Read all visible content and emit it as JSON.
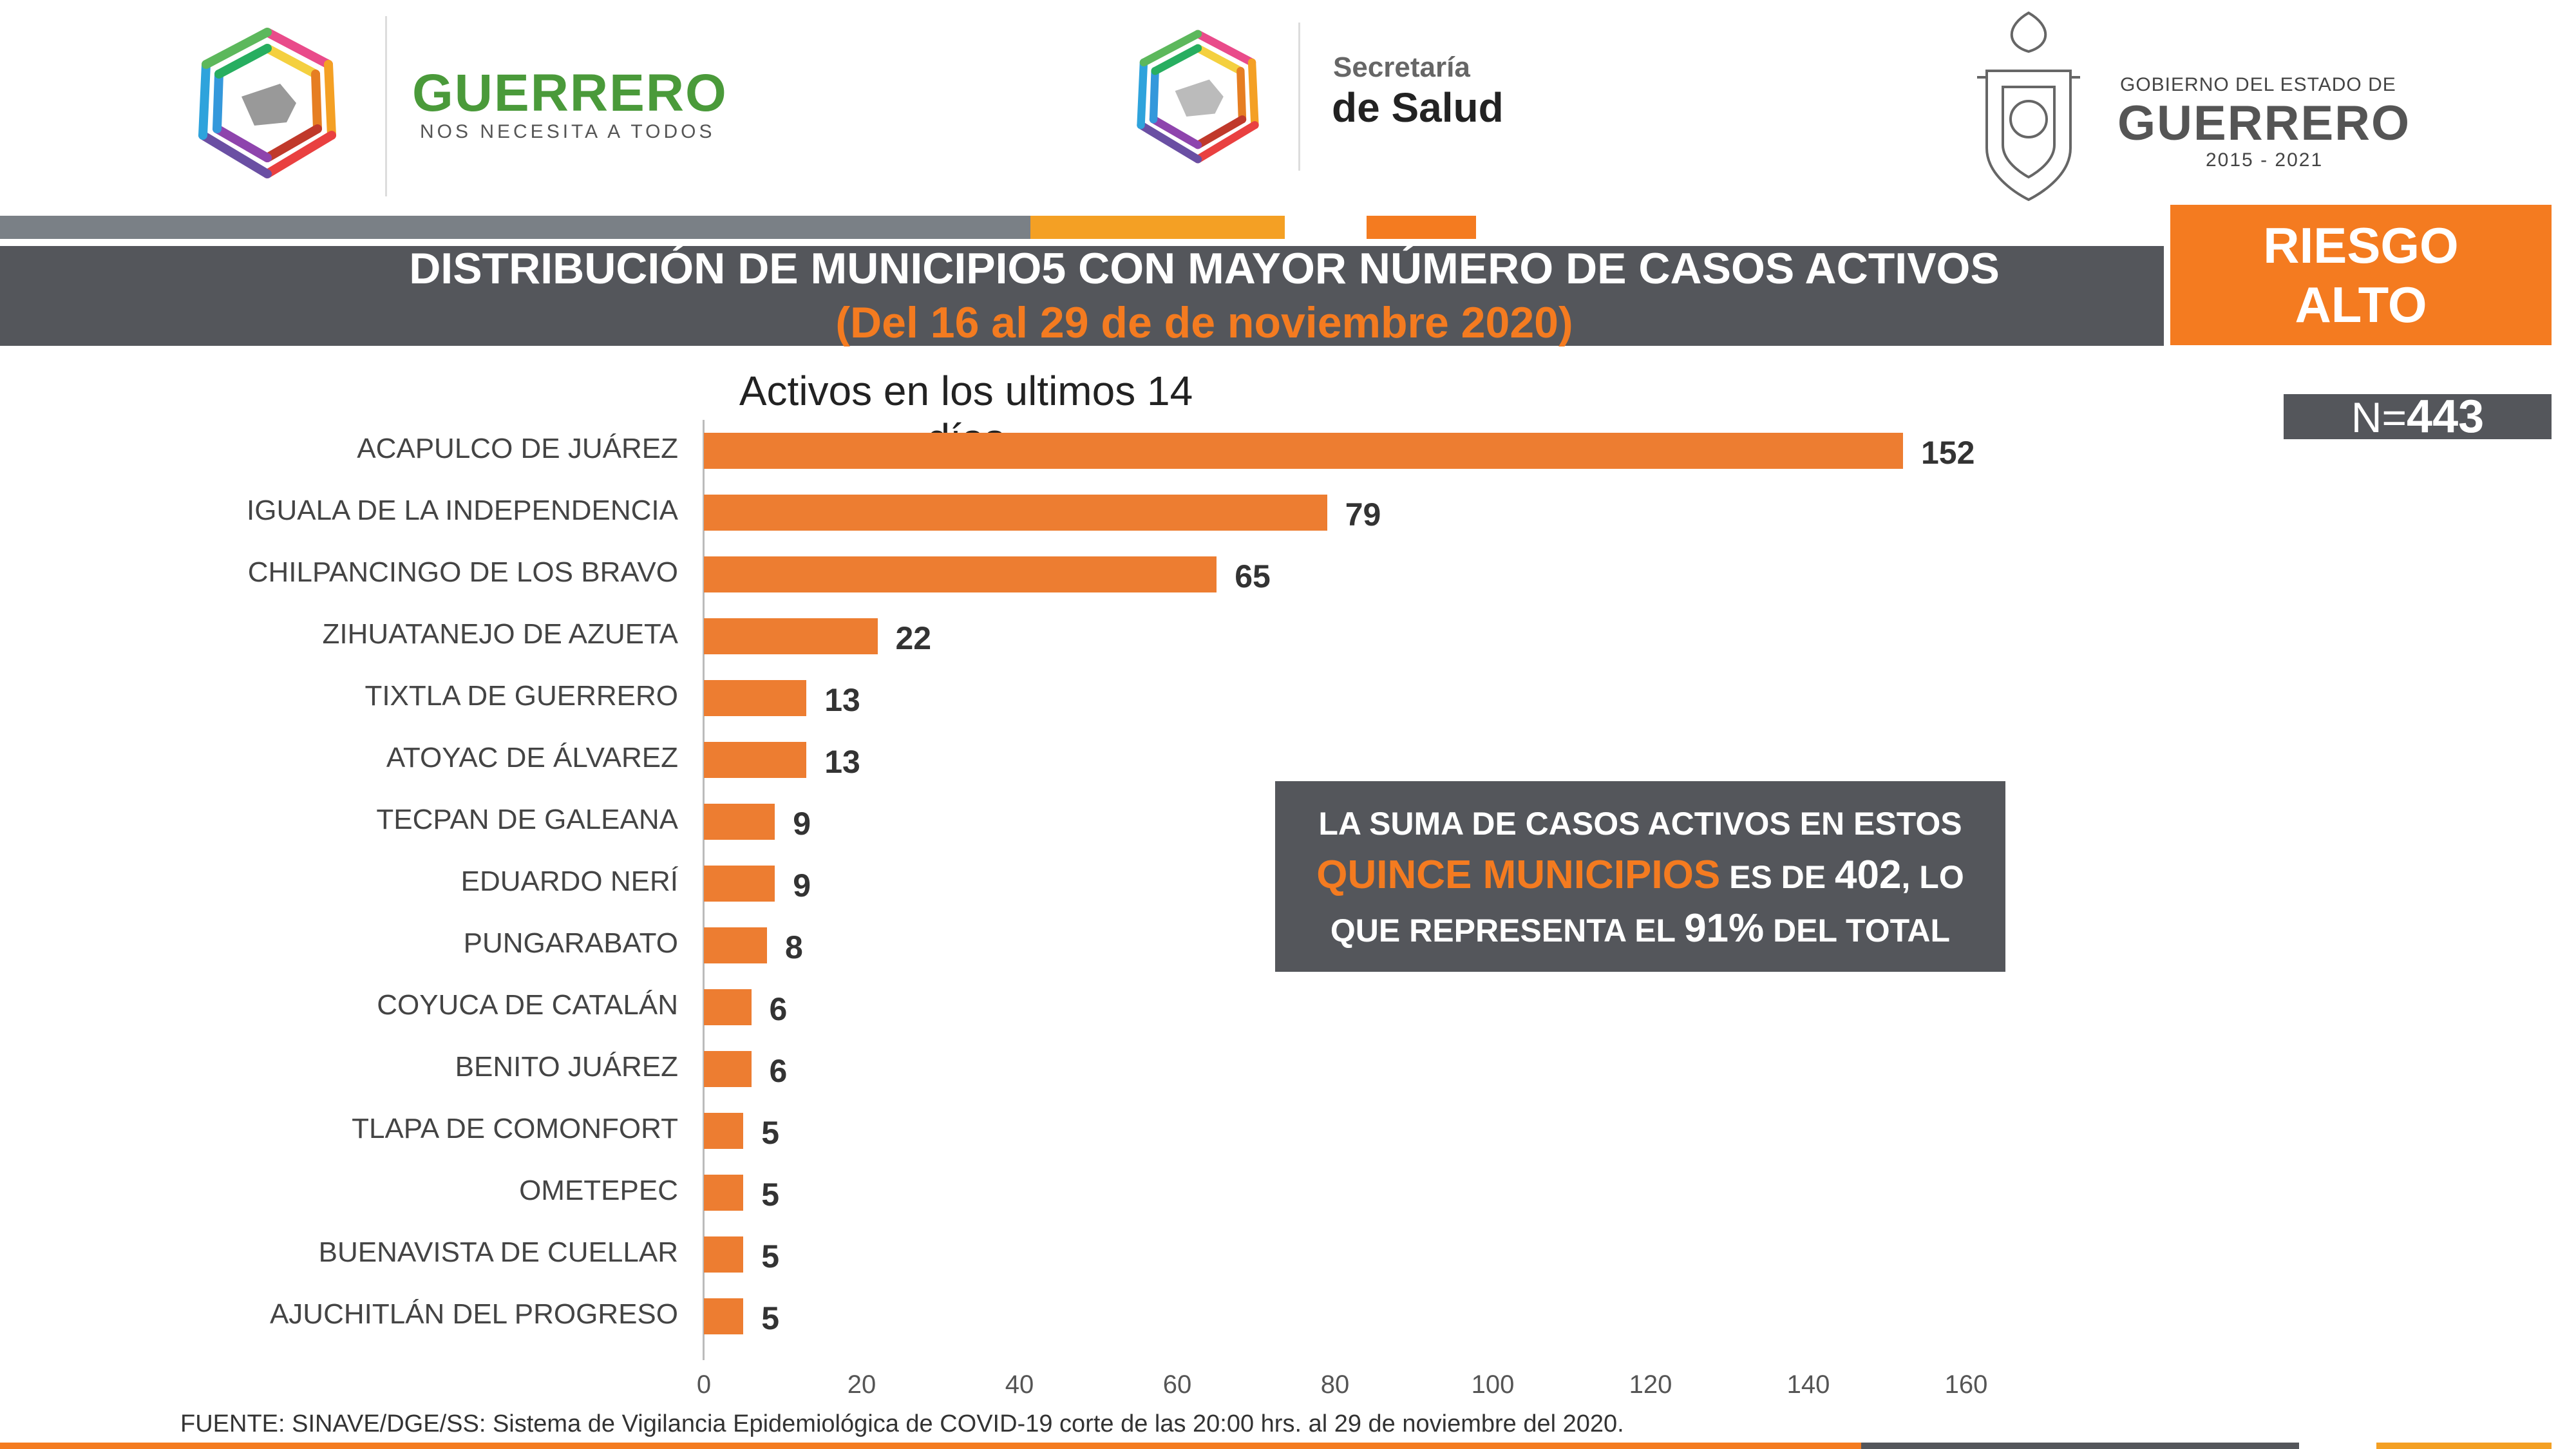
{
  "header": {
    "logo1_title": "GUERRERO",
    "logo1_sub": "NOS NECESITA A TODOS",
    "logo2_top": "Secretaría",
    "logo2_bottom": "de Salud",
    "logo3_top": "GOBIERNO DEL ESTADO DE",
    "logo3_mid": "GUERRERO",
    "logo3_bottom": "2015 - 2021"
  },
  "title": {
    "main": "DISTRIBUCIÓN DE MUNICIPIO5 CON MAYOR NÚMERO DE  CASOS ACTIVOS",
    "sub": "(Del 16 al 29 de de noviembre 2020)"
  },
  "risk": {
    "line1": "RIESGO",
    "line2": "ALTO"
  },
  "n": {
    "prefix": "N=",
    "value": "443"
  },
  "note": {
    "line1": "LA SUMA DE CASOS ACTIVOS EN ESTOS",
    "hl1": "QUINCE MUNICIPIOS",
    "mid": " ES DE ",
    "num": "402",
    "tail": ", LO",
    "line3a": "QUE REPRESENTA EL ",
    "pct": "91%",
    "line3b": " DEL TOTAL"
  },
  "source": "FUENTE: SINAVE/DGE/SS: Sistema de Vigilancia Epidemiológica de COVID-19 corte de las 20:00 hrs. al 29 de noviembre del 2020.",
  "colors": {
    "bar": "#ed7d31",
    "accent": "#f47b20",
    "band": "#54565b"
  },
  "chart_data": {
    "type": "bar",
    "orientation": "horizontal",
    "title": "Activos en los ultimos 14 días",
    "categories": [
      "ACAPULCO DE JUÁREZ",
      "IGUALA DE LA INDEPENDENCIA",
      "CHILPANCINGO DE LOS BRAVO",
      "ZIHUATANEJO DE AZUETA",
      "TIXTLA DE GUERRERO",
      "ATOYAC DE ÁLVAREZ",
      "TECPAN DE GALEANA",
      "EDUARDO NERÍ",
      "PUNGARABATO",
      "COYUCA DE CATALÁN",
      "BENITO JUÁREZ",
      "TLAPA DE COMONFORT",
      "OMETEPEC",
      "BUENAVISTA DE CUELLAR",
      "AJUCHITLÁN DEL PROGRESO"
    ],
    "values": [
      152,
      79,
      65,
      22,
      13,
      13,
      9,
      9,
      8,
      6,
      6,
      5,
      5,
      5,
      5
    ],
    "xlim": [
      0,
      160
    ],
    "xticks": [
      0,
      20,
      40,
      60,
      80,
      100,
      120,
      140,
      160
    ],
    "grid": false
  }
}
